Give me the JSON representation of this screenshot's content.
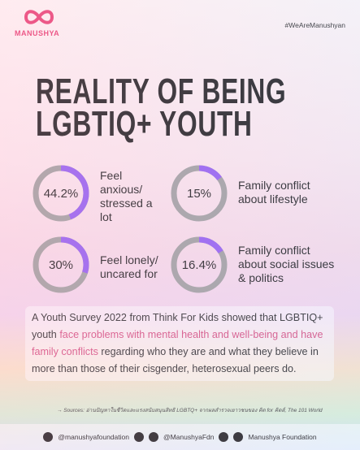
{
  "header": {
    "logo": "MANUSHYA",
    "hashtag": "#WeAreManushyan"
  },
  "title": [
    "REALITY OF BEING",
    "LGBTIQ+ YOUTH"
  ],
  "stats": [
    {
      "value": 44.2,
      "value_label": "44.2%",
      "text": "Feel anxious/ stressed a lot"
    },
    {
      "value": 15,
      "value_label": "15%",
      "text": "Family conflict about lifestyle"
    },
    {
      "value": 30,
      "value_label": "30%",
      "text": "Feel lonely/ uncared for"
    },
    {
      "value": 16.4,
      "value_label": "16.4%",
      "text": "Family conflict about social issues & politics"
    }
  ],
  "summary": [
    {
      "text": "A Youth Survey 2022 from Think For Kids showed that LGBTIQ+ youth ",
      "highlight": false
    },
    {
      "text": "face problems with mental health and well-being and have family conflicts",
      "highlight": true
    },
    {
      "text": " regarding who they are and what they believe in more than those of their cisgender, heterosexual peers do.",
      "highlight": false
    }
  ],
  "sources": "→ Sources: อ่านปัญหาในชีวิตและแรงสนับสนุนสิทธิ LGBTQ+ จากผลสำรวจเยาวชนของ คิด for คิดส์, The 101 World",
  "social": [
    "@manushyafoundation",
    "@ManushyaFdn",
    "Manushya Foundation"
  ]
}
